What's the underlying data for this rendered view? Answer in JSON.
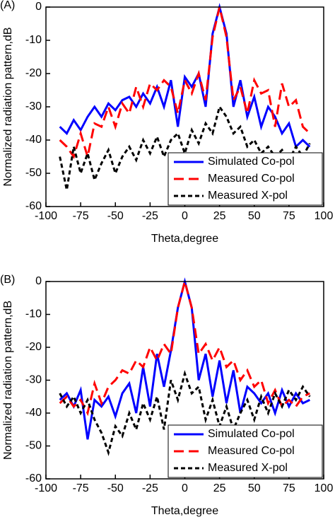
{
  "chart_data": [
    {
      "type": "line",
      "label": "(A)",
      "xlabel": "Theta,degree",
      "ylabel": "Normalized radiation pattern,dB",
      "x": [
        -90,
        -85,
        -80,
        -75,
        -70,
        -65,
        -60,
        -55,
        -50,
        -45,
        -40,
        -35,
        -30,
        -25,
        -20,
        -15,
        -10,
        -5,
        0,
        5,
        10,
        15,
        20,
        25,
        30,
        35,
        40,
        45,
        50,
        55,
        60,
        65,
        70,
        75,
        80,
        85,
        90
      ],
      "series": [
        {
          "name": "Simulated Co-pol",
          "color": "#0000ff",
          "dash": "solid",
          "values": [
            -36,
            -38,
            -34,
            -37,
            -33,
            -30,
            -33,
            -29,
            -31,
            -28,
            -27,
            -30,
            -26,
            -29,
            -24,
            -30,
            -22,
            -36,
            -21,
            -24,
            -20,
            -30,
            -8,
            0,
            -8,
            -30,
            -22,
            -33,
            -27,
            -36,
            -30,
            -33,
            -38,
            -35,
            -42,
            -40,
            -42
          ]
        },
        {
          "name": "Measured Co-pol",
          "color": "#ff0000",
          "dash": "long",
          "values": [
            -40,
            -42,
            -45,
            -38,
            -45,
            -35,
            -36,
            -30,
            -36,
            -29,
            -32,
            -24,
            -30,
            -23,
            -25,
            -22,
            -24,
            -32,
            -22,
            -26,
            -20,
            -28,
            -9,
            0,
            -9,
            -28,
            -24,
            -32,
            -22,
            -26,
            -25,
            -36,
            -23,
            -30,
            -28,
            -36,
            -38
          ]
        },
        {
          "name": "Measured X-pol",
          "color": "#000000",
          "dash": "short",
          "values": [
            -45,
            -55,
            -42,
            -50,
            -44,
            -52,
            -47,
            -43,
            -50,
            -45,
            -42,
            -46,
            -40,
            -44,
            -39,
            -45,
            -40,
            -38,
            -44,
            -37,
            -41,
            -35,
            -38,
            -30,
            -33,
            -38,
            -36,
            -42,
            -40,
            -44,
            -42,
            -45,
            -43,
            -46,
            -42,
            -45,
            -41
          ]
        }
      ],
      "xlim": [
        -100,
        100
      ],
      "xticks": [
        -100,
        -75,
        -50,
        -25,
        0,
        25,
        50,
        75,
        100
      ],
      "ylim": [
        -60,
        0
      ],
      "yticks": [
        -60,
        -50,
        -40,
        -30,
        -20,
        -10,
        0
      ],
      "legend": "lower right"
    },
    {
      "type": "line",
      "label": "(B)",
      "xlabel": "Theta,degree",
      "ylabel": "Normalized radiation pattern,dB",
      "x": [
        -90,
        -85,
        -80,
        -75,
        -70,
        -65,
        -60,
        -55,
        -50,
        -45,
        -40,
        -35,
        -30,
        -25,
        -20,
        -15,
        -10,
        -5,
        0,
        5,
        10,
        15,
        20,
        25,
        30,
        35,
        40,
        45,
        50,
        55,
        60,
        65,
        70,
        75,
        80,
        85,
        90
      ],
      "series": [
        {
          "name": "Simulated Co-pol",
          "color": "#0000ff",
          "dash": "solid",
          "values": [
            -36,
            -34,
            -38,
            -33,
            -48,
            -36,
            -38,
            -35,
            -41,
            -34,
            -31,
            -40,
            -26,
            -38,
            -22,
            -32,
            -21,
            -8,
            0,
            -8,
            -30,
            -22,
            -35,
            -24,
            -37,
            -27,
            -40,
            -32,
            -34,
            -37,
            -34,
            -40,
            -33,
            -38,
            -34,
            -37,
            -36
          ]
        },
        {
          "name": "Measured Co-pol",
          "color": "#ff0000",
          "dash": "long",
          "values": [
            -37,
            -35,
            -38,
            -36,
            -40,
            -31,
            -37,
            -32,
            -30,
            -27,
            -28,
            -24,
            -26,
            -20,
            -24,
            -19,
            -22,
            -8,
            0,
            -8,
            -22,
            -19,
            -24,
            -20,
            -26,
            -24,
            -30,
            -27,
            -32,
            -30,
            -37,
            -33,
            -38,
            -36,
            -38,
            -35,
            -34
          ]
        },
        {
          "name": "Measured X-pol",
          "color": "#000000",
          "dash": "short",
          "values": [
            -34,
            -38,
            -35,
            -40,
            -36,
            -42,
            -46,
            -52,
            -44,
            -47,
            -40,
            -45,
            -37,
            -42,
            -35,
            -45,
            -30,
            -36,
            -28,
            -34,
            -32,
            -42,
            -36,
            -44,
            -38,
            -45,
            -40,
            -36,
            -42,
            -35,
            -40,
            -34,
            -38,
            -33,
            -36,
            -32,
            -35
          ]
        }
      ],
      "xlim": [
        -100,
        100
      ],
      "xticks": [
        -100,
        -75,
        -50,
        -25,
        0,
        25,
        50,
        75,
        100
      ],
      "ylim": [
        -60,
        0
      ],
      "yticks": [
        -60,
        -50,
        -40,
        -30,
        -20,
        -10,
        0
      ],
      "legend": "lower right"
    }
  ]
}
